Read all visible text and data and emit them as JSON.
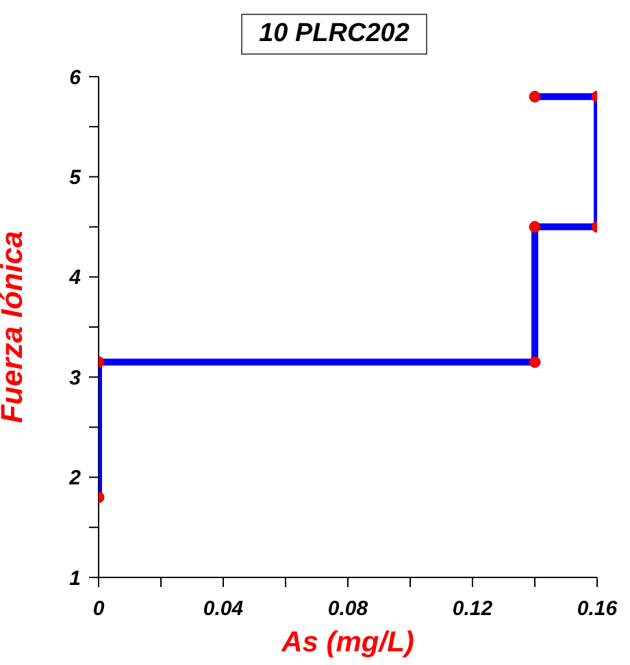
{
  "chart_data": {
    "type": "line",
    "title": "10 PLRC202",
    "xlabel": "As (mg/L)",
    "ylabel": "Fuerza Iónica",
    "x": [
      0,
      0,
      0.14,
      0.14,
      0.16,
      0.16,
      0.14
    ],
    "series": [
      {
        "color": "#0000ff",
        "values": [
          1.8,
          3.15,
          3.15,
          4.5,
          4.5,
          5.8,
          5.8
        ]
      }
    ],
    "xlim": [
      0,
      0.16
    ],
    "xticks": [
      0,
      {
        "value": 0.02,
        "label": null
      },
      0.04,
      {
        "value": 0.06,
        "label": null
      },
      0.08,
      {
        "value": 0.1,
        "label": null
      },
      0.12,
      {
        "value": 0.14,
        "label": null
      },
      0.16
    ],
    "ylim": [
      1,
      6
    ],
    "yticks": [
      1,
      {
        "value": 1.5,
        "label": null
      },
      2,
      {
        "value": 2.5,
        "label": null
      },
      3,
      {
        "value": 3.5,
        "label": null
      },
      4,
      {
        "value": 4.5,
        "label": null
      },
      5,
      {
        "value": 5.5,
        "label": null
      },
      6
    ],
    "marker": "circle",
    "line_style": "solid",
    "grid": false,
    "legend": false
  }
}
